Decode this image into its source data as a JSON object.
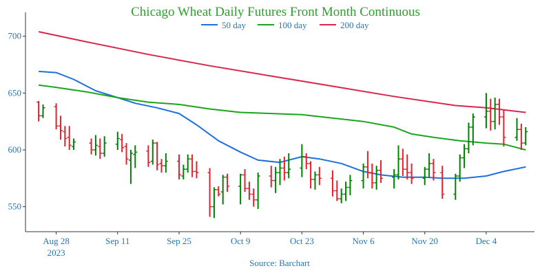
{
  "chart_data": {
    "type": "ohlc",
    "title": "Chicago Wheat Daily Futures Front Month Continuous",
    "source": "Source: Barchart",
    "xlabel": "",
    "ylabel": "",
    "ylim": [
      528,
      721
    ],
    "yticks": [
      550,
      600,
      650,
      700
    ],
    "xticks": [
      {
        "date": "2023-08-28",
        "label": "Aug 28",
        "sublabel": "2023"
      },
      {
        "date": "2023-09-11",
        "label": "Sep 11",
        "sublabel": ""
      },
      {
        "date": "2023-09-25",
        "label": "Sep 25",
        "sublabel": ""
      },
      {
        "date": "2023-10-09",
        "label": "Oct 9",
        "sublabel": ""
      },
      {
        "date": "2023-10-23",
        "label": "Oct 23",
        "sublabel": ""
      },
      {
        "date": "2023-11-06",
        "label": "Nov 6",
        "sublabel": ""
      },
      {
        "date": "2023-11-20",
        "label": "Nov 20",
        "sublabel": ""
      },
      {
        "date": "2023-12-04",
        "label": "Dec 4",
        "sublabel": ""
      }
    ],
    "legend": {
      "position": "top"
    },
    "colors": {
      "up": "#008000",
      "down": "#e4202c",
      "ma50": "#1e6fdc",
      "ma100": "#1aa51a",
      "ma200": "#d8254a",
      "axis": "#333333"
    },
    "moving_averages": [
      {
        "name": "50 day",
        "color": "#1e6fdc",
        "points": [
          [
            "2023-08-24",
            669
          ],
          [
            "2023-08-28",
            668
          ],
          [
            "2023-09-01",
            662
          ],
          [
            "2023-09-06",
            652
          ],
          [
            "2023-09-11",
            646
          ],
          [
            "2023-09-15",
            641
          ],
          [
            "2023-09-20",
            637
          ],
          [
            "2023-09-25",
            632
          ],
          [
            "2023-09-29",
            622
          ],
          [
            "2023-10-04",
            608
          ],
          [
            "2023-10-09",
            598
          ],
          [
            "2023-10-13",
            591
          ],
          [
            "2023-10-18",
            589
          ],
          [
            "2023-10-23",
            594
          ],
          [
            "2023-10-27",
            592
          ],
          [
            "2023-11-01",
            588
          ],
          [
            "2023-11-06",
            581
          ],
          [
            "2023-11-10",
            578
          ],
          [
            "2023-11-15",
            576
          ],
          [
            "2023-11-20",
            576
          ],
          [
            "2023-11-24",
            575
          ],
          [
            "2023-11-29",
            575
          ],
          [
            "2023-12-04",
            577
          ],
          [
            "2023-12-08",
            581
          ],
          [
            "2023-12-13",
            585
          ]
        ]
      },
      {
        "name": "100 day",
        "color": "#1aa51a",
        "points": [
          [
            "2023-08-24",
            657
          ],
          [
            "2023-08-28",
            655
          ],
          [
            "2023-09-04",
            651
          ],
          [
            "2023-09-11",
            646
          ],
          [
            "2023-09-18",
            642
          ],
          [
            "2023-09-25",
            640
          ],
          [
            "2023-10-02",
            636
          ],
          [
            "2023-10-09",
            633
          ],
          [
            "2023-10-16",
            632
          ],
          [
            "2023-10-23",
            631
          ],
          [
            "2023-10-30",
            628
          ],
          [
            "2023-11-06",
            625
          ],
          [
            "2023-11-13",
            620
          ],
          [
            "2023-11-17",
            614
          ],
          [
            "2023-11-22",
            611
          ],
          [
            "2023-11-28",
            608
          ],
          [
            "2023-12-04",
            606
          ],
          [
            "2023-12-08",
            605
          ],
          [
            "2023-12-13",
            600
          ]
        ]
      },
      {
        "name": "200 day",
        "color": "#d8254a",
        "points": [
          [
            "2023-08-24",
            704
          ],
          [
            "2023-09-04",
            695
          ],
          [
            "2023-09-18",
            684
          ],
          [
            "2023-10-02",
            674
          ],
          [
            "2023-10-16",
            665
          ],
          [
            "2023-10-30",
            656
          ],
          [
            "2023-11-13",
            647
          ],
          [
            "2023-11-27",
            639
          ],
          [
            "2023-12-04",
            637
          ],
          [
            "2023-12-13",
            633
          ]
        ]
      }
    ],
    "ohlc": [
      [
        "2023-08-24",
        642,
        643,
        625,
        630
      ],
      [
        "2023-08-25",
        630,
        640,
        628,
        637
      ],
      [
        "2023-08-28",
        638,
        641,
        618,
        621
      ],
      [
        "2023-08-29",
        621,
        630,
        609,
        617
      ],
      [
        "2023-08-30",
        616,
        621,
        603,
        610
      ],
      [
        "2023-08-31",
        611,
        621,
        600,
        604
      ],
      [
        "2023-09-01",
        603,
        610,
        600,
        607
      ],
      [
        "2023-09-05",
        606,
        610,
        596,
        600
      ],
      [
        "2023-09-06",
        600,
        613,
        595,
        604
      ],
      [
        "2023-09-07",
        603,
        610,
        592,
        597
      ],
      [
        "2023-09-08",
        597,
        612,
        594,
        606
      ],
      [
        "2023-09-11",
        605,
        616,
        600,
        610
      ],
      [
        "2023-09-12",
        609,
        614,
        598,
        602
      ],
      [
        "2023-09-13",
        603,
        606,
        587,
        592
      ],
      [
        "2023-09-14",
        591,
        600,
        570,
        597
      ],
      [
        "2023-09-15",
        596,
        604,
        584,
        598
      ],
      [
        "2023-09-18",
        599,
        604,
        585,
        589
      ],
      [
        "2023-09-19",
        590,
        609,
        587,
        606
      ],
      [
        "2023-09-20",
        606,
        607,
        582,
        587
      ],
      [
        "2023-09-21",
        588,
        592,
        580,
        586
      ],
      [
        "2023-09-22",
        586,
        597,
        580,
        590
      ],
      [
        "2023-09-25",
        590,
        596,
        574,
        578
      ],
      [
        "2023-09-26",
        577,
        587,
        574,
        583
      ],
      [
        "2023-09-27",
        583,
        596,
        580,
        592
      ],
      [
        "2023-09-28",
        592,
        596,
        576,
        581
      ],
      [
        "2023-09-29",
        581,
        590,
        575,
        580
      ],
      [
        "2023-10-02",
        580,
        584,
        541,
        550
      ],
      [
        "2023-10-03",
        550,
        567,
        540,
        565
      ],
      [
        "2023-10-04",
        565,
        568,
        559,
        561
      ],
      [
        "2023-10-05",
        563,
        578,
        552,
        576
      ],
      [
        "2023-10-06",
        576,
        579,
        563,
        568
      ],
      [
        "2023-10-09",
        568,
        579,
        552,
        578
      ],
      [
        "2023-10-10",
        578,
        583,
        563,
        566
      ],
      [
        "2023-10-11",
        566,
        572,
        556,
        561
      ],
      [
        "2023-10-12",
        561,
        566,
        550,
        556
      ],
      [
        "2023-10-13",
        556,
        580,
        548,
        577
      ],
      [
        "2023-10-16",
        577,
        586,
        567,
        573
      ],
      [
        "2023-10-17",
        573,
        585,
        562,
        580
      ],
      [
        "2023-10-18",
        580,
        592,
        569,
        584
      ],
      [
        "2023-10-19",
        584,
        594,
        573,
        580
      ],
      [
        "2023-10-20",
        580,
        597,
        575,
        583
      ],
      [
        "2023-10-23",
        584,
        605,
        576,
        594
      ],
      [
        "2023-10-24",
        594,
        597,
        583,
        588
      ],
      [
        "2023-10-25",
        588,
        590,
        566,
        574
      ],
      [
        "2023-10-26",
        574,
        581,
        565,
        578
      ],
      [
        "2023-10-27",
        578,
        585,
        569,
        575
      ],
      [
        "2023-10-30",
        575,
        582,
        559,
        564
      ],
      [
        "2023-10-31",
        564,
        573,
        555,
        557
      ],
      [
        "2023-11-01",
        557,
        566,
        553,
        561
      ],
      [
        "2023-11-02",
        561,
        572,
        555,
        567
      ],
      [
        "2023-11-03",
        567,
        578,
        560,
        573
      ],
      [
        "2023-11-06",
        573,
        588,
        566,
        585
      ],
      [
        "2023-11-07",
        585,
        599,
        575,
        580
      ],
      [
        "2023-11-08",
        580,
        588,
        566,
        571
      ],
      [
        "2023-11-09",
        571,
        586,
        565,
        582
      ],
      [
        "2023-11-10",
        582,
        591,
        571,
        575
      ],
      [
        "2023-11-13",
        576,
        583,
        566,
        578
      ],
      [
        "2023-11-14",
        578,
        604,
        574,
        592
      ],
      [
        "2023-11-15",
        592,
        601,
        577,
        583
      ],
      [
        "2023-11-16",
        583,
        596,
        574,
        580
      ],
      [
        "2023-11-17",
        580,
        588,
        570,
        575
      ],
      [
        "2023-11-20",
        575,
        585,
        569,
        583
      ],
      [
        "2023-11-21",
        583,
        597,
        576,
        588
      ],
      [
        "2023-11-22",
        588,
        592,
        573,
        580
      ],
      [
        "2023-11-24",
        580,
        586,
        557,
        561
      ],
      [
        "2023-11-27",
        561,
        579,
        556,
        577
      ],
      [
        "2023-11-28",
        577,
        596,
        572,
        593
      ],
      [
        "2023-11-29",
        593,
        605,
        584,
        601
      ],
      [
        "2023-11-30",
        601,
        624,
        597,
        620
      ],
      [
        "2023-12-01",
        620,
        632,
        604,
        629
      ],
      [
        "2023-12-04",
        629,
        650,
        619,
        634
      ],
      [
        "2023-12-05",
        634,
        645,
        617,
        625
      ],
      [
        "2023-12-06",
        625,
        646,
        618,
        640
      ],
      [
        "2023-12-07",
        640,
        645,
        622,
        629
      ],
      [
        "2023-12-08",
        629,
        635,
        603,
        611
      ],
      [
        "2023-12-11",
        611,
        628,
        608,
        618
      ],
      [
        "2023-12-12",
        618,
        623,
        600,
        606
      ],
      [
        "2023-12-13",
        606,
        620,
        604,
        616
      ]
    ]
  },
  "legend_items": [
    {
      "name": "50 day",
      "color": "#1e6fdc"
    },
    {
      "name": "100 day",
      "color": "#1aa51a"
    },
    {
      "name": "200 day",
      "color": "#d8254a"
    }
  ]
}
